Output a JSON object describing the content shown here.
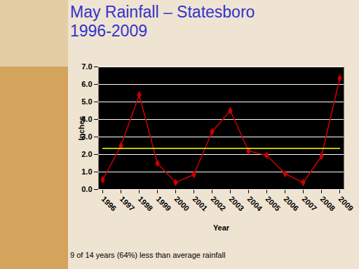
{
  "chart_data": {
    "type": "line",
    "title": "May Rainfall – Statesboro",
    "subtitle": "1996-2009",
    "x_label": "Year",
    "y_label": "Inches",
    "caption": "9 of 14 years (64%) less than average rainfall",
    "categories": [
      "1996",
      "1997",
      "1998",
      "1999",
      "2000",
      "2001",
      "2002",
      "2003",
      "2004",
      "2005",
      "2006",
      "2007",
      "2008",
      "2009"
    ],
    "series": [
      {
        "color": "#cc0000",
        "marker": "diamond",
        "values": [
          0.55,
          2.5,
          5.4,
          1.5,
          0.4,
          0.85,
          3.3,
          4.5,
          2.2,
          1.95,
          0.9,
          0.4,
          1.9,
          6.35
        ]
      },
      {
        "color": "#ffff00",
        "marker": "none",
        "values": [
          2.35,
          2.35,
          2.35,
          2.35,
          2.35,
          2.35,
          2.35,
          2.35,
          2.35,
          2.35,
          2.35,
          2.35,
          2.35,
          2.35
        ]
      }
    ],
    "ylim": [
      0,
      7
    ],
    "yticks": [
      0,
      1,
      2,
      3,
      4,
      5,
      6,
      7
    ],
    "grid": true
  }
}
